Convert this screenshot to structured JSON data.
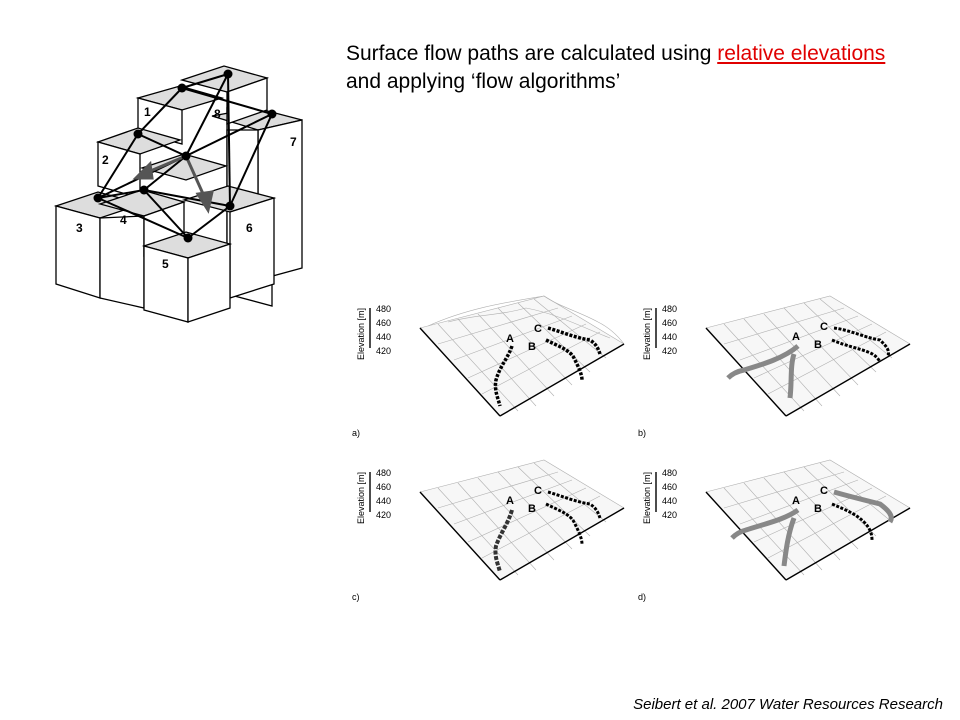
{
  "slide": {
    "heading": {
      "part1": "Surface flow paths are calculated using ",
      "part2": "relative elevations ",
      "part3": "and applying ‘flow algorithms’"
    },
    "citation": "Seibert et al. 2007 Water Resources Research"
  },
  "block_diagram": {
    "cells": [
      {
        "label": "1"
      },
      {
        "label": "2"
      },
      {
        "label": "3"
      },
      {
        "label": "4"
      },
      {
        "label": "5"
      },
      {
        "label": "6"
      },
      {
        "label": "7"
      },
      {
        "label": "8"
      }
    ]
  },
  "panels": [
    {
      "label": "a)",
      "axis_title": "Elevation [m]",
      "ticks": [
        "480",
        "460",
        "440",
        "420"
      ],
      "path_labels": [
        "A",
        "B",
        "C"
      ]
    },
    {
      "label": "b)",
      "axis_title": "Elevation [m]",
      "ticks": [
        "480",
        "460",
        "440",
        "420"
      ],
      "path_labels": [
        "A",
        "B",
        "C"
      ]
    },
    {
      "label": "c)",
      "axis_title": "Elevation [m]",
      "ticks": [
        "480",
        "460",
        "440",
        "420"
      ],
      "path_labels": [
        "A",
        "B",
        "C"
      ]
    },
    {
      "label": "d)",
      "axis_title": "Elevation [m]",
      "ticks": [
        "480",
        "460",
        "440",
        "420"
      ],
      "path_labels": [
        "A",
        "B",
        "C"
      ]
    }
  ]
}
